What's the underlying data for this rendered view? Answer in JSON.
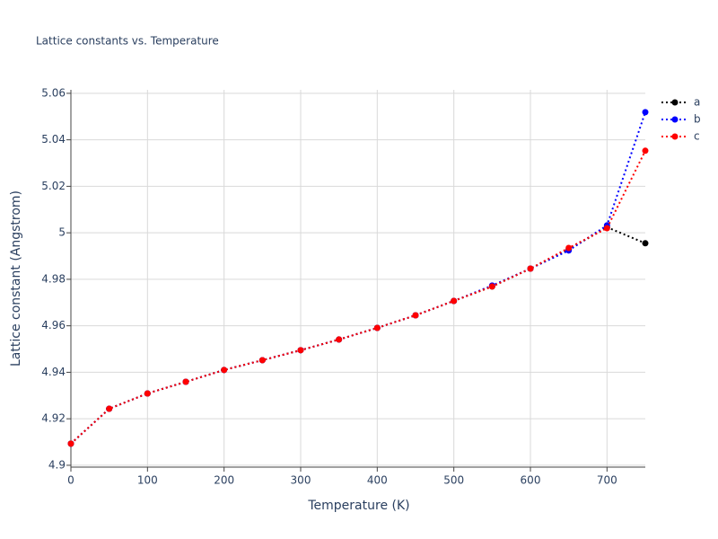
{
  "chart_data": {
    "type": "line",
    "title": "Lattice constants vs. Temperature",
    "x_label": "Temperature (K)",
    "y_label": "Lattice constant (Angstrom)",
    "x": [
      0,
      50,
      100,
      150,
      200,
      250,
      300,
      350,
      400,
      450,
      500,
      550,
      600,
      650,
      700,
      750
    ],
    "series": [
      {
        "name": "a",
        "color": "#000000",
        "values": [
          4.9093,
          4.9243,
          4.9309,
          4.9359,
          4.941,
          4.9452,
          4.9495,
          4.9541,
          4.9591,
          4.9645,
          4.9707,
          4.9769,
          4.9846,
          4.9928,
          5.0024,
          4.9955
        ]
      },
      {
        "name": "b",
        "color": "#0000ff",
        "values": [
          4.9093,
          4.9243,
          4.9309,
          4.9359,
          4.941,
          4.9452,
          4.9495,
          4.9541,
          4.9591,
          4.9645,
          4.9707,
          4.9773,
          4.9846,
          4.9924,
          5.0032,
          5.0519
        ]
      },
      {
        "name": "c",
        "color": "#ff0000",
        "values": [
          4.9093,
          4.9243,
          4.9309,
          4.9359,
          4.941,
          4.9452,
          4.9495,
          4.9541,
          4.9591,
          4.9645,
          4.9707,
          4.9769,
          4.9846,
          4.9935,
          5.002,
          5.0353
        ]
      }
    ],
    "xlim": [
      0,
      750
    ],
    "xticks": [
      0,
      100,
      200,
      300,
      400,
      500,
      600,
      700
    ],
    "ylim": [
      4.8992,
      5.0615
    ],
    "yticks": [
      4.9,
      4.92,
      4.94,
      4.96,
      4.98,
      5,
      5.02,
      5.04,
      5.06
    ],
    "grid": true,
    "legend": "right"
  }
}
